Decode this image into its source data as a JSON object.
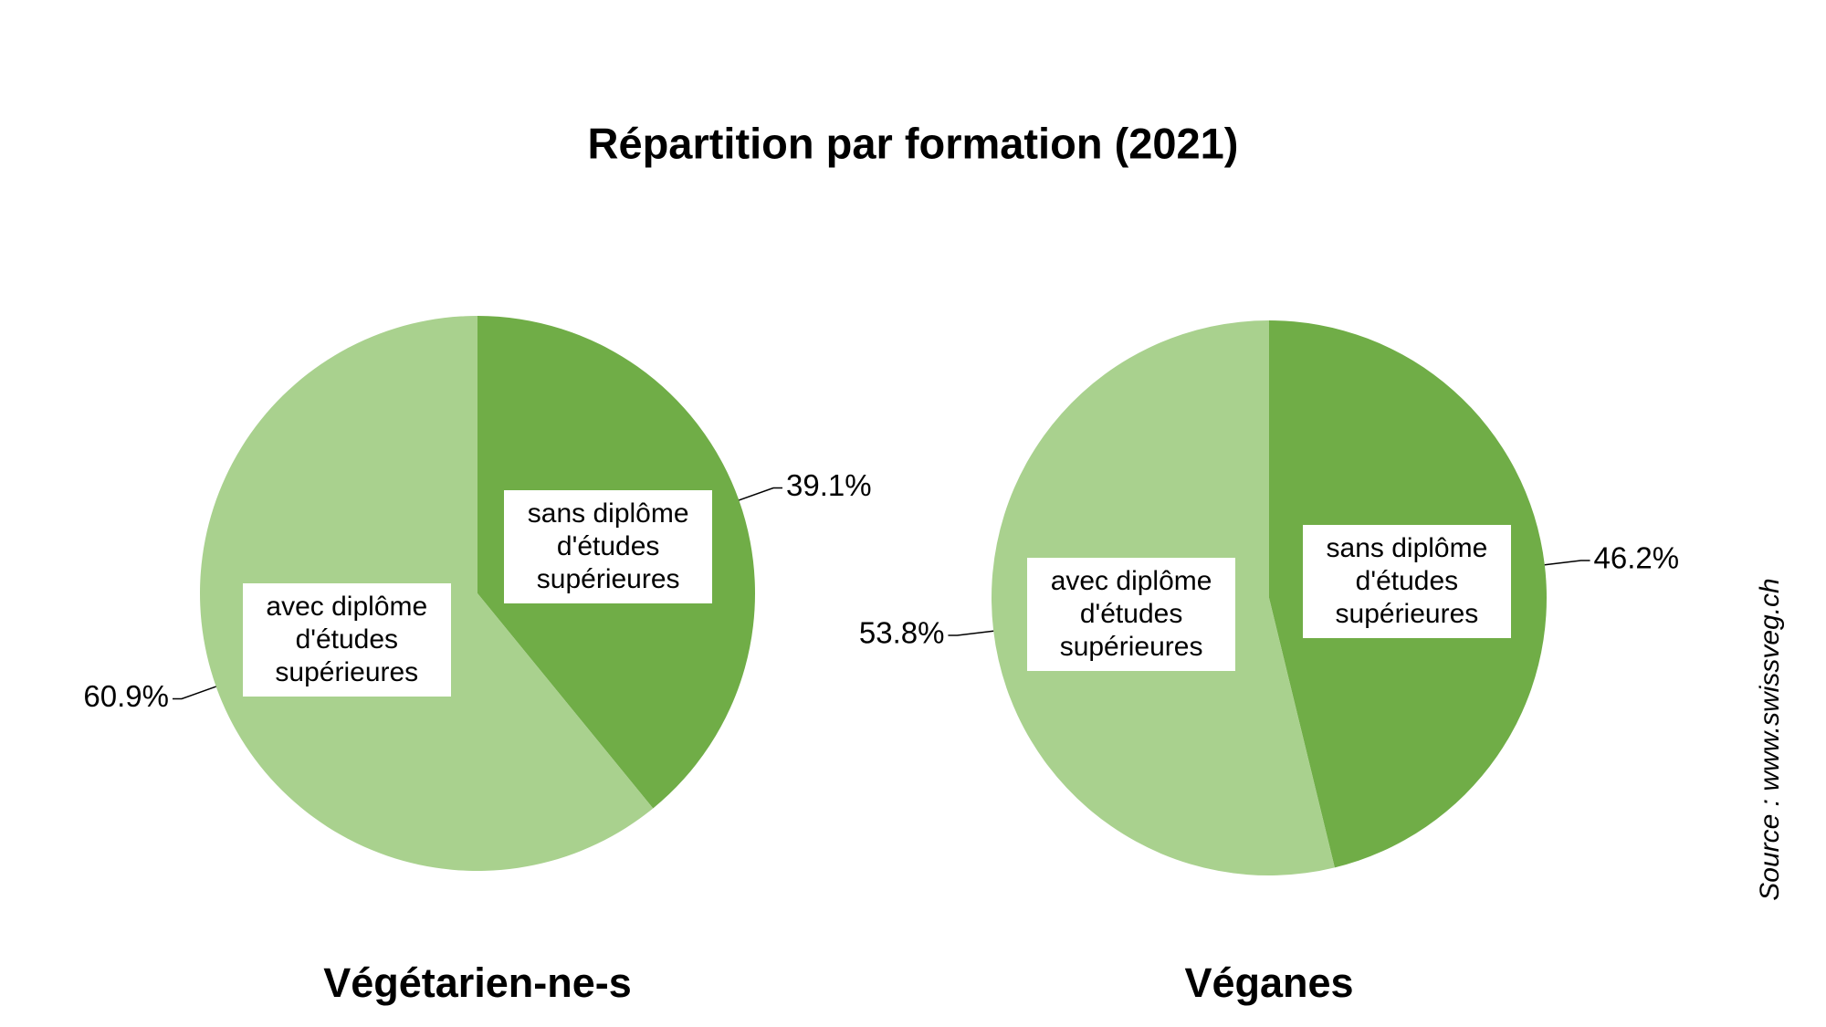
{
  "title": "Répartition par formation (2021)",
  "source": "Source : www.swissveg.ch",
  "chart_data": [
    {
      "type": "pie",
      "title": "Végétarien-ne-s",
      "categories": [
        "sans diplôme d'études supérieures",
        "avec diplôme d'études supérieures"
      ],
      "values": [
        39.1,
        60.9
      ],
      "value_labels": [
        "39.1%",
        "60.9%"
      ],
      "colors": [
        "#70ad47",
        "#a9d18e"
      ]
    },
    {
      "type": "pie",
      "title": "Véganes",
      "categories": [
        "sans diplôme d'études supérieures",
        "avec diplôme d'études supérieures"
      ],
      "values": [
        46.2,
        53.8
      ],
      "value_labels": [
        "46.2%",
        "53.8%"
      ],
      "colors": [
        "#70ad47",
        "#a9d18e"
      ]
    }
  ]
}
